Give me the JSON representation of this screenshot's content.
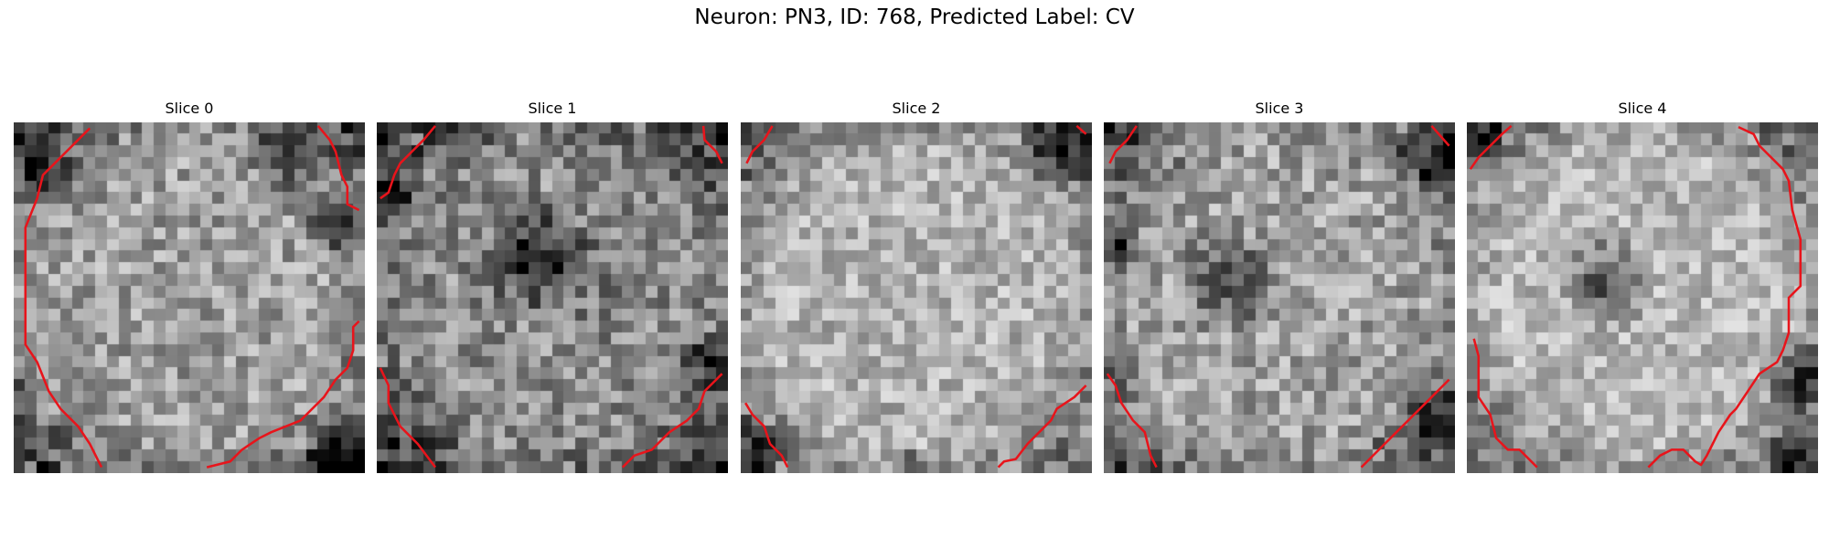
{
  "figure": {
    "title": "Neuron: PN3, ID: 768, Predicted Label: CV"
  },
  "panels": [
    {
      "title": "Slice 0",
      "image": {
        "grid": 30,
        "base": 0.62,
        "noise": 0.42,
        "ring_dark": [
          [
            0.92,
            0.95,
            0.1
          ],
          [
            0.78,
            0.1,
            0.12
          ],
          [
            0.1,
            0.15,
            0.1
          ],
          [
            0.9,
            0.3,
            0.1
          ]
        ],
        "center_dark": null,
        "seed": 11
      },
      "contour_segments": [
        [
          [
            6.5,
            0.5
          ],
          [
            5.5,
            1.5
          ],
          [
            4.5,
            2.5
          ],
          [
            3.5,
            3.5
          ],
          [
            2.5,
            4.5
          ],
          [
            2.0,
            6.5
          ],
          [
            1.0,
            9.0
          ],
          [
            1.0,
            12.0
          ],
          [
            1.0,
            16.0
          ],
          [
            1.0,
            19.0
          ],
          [
            2.0,
            20.5
          ],
          [
            3.0,
            23.0
          ],
          [
            4.0,
            24.5
          ],
          [
            5.5,
            26.0
          ],
          [
            6.5,
            27.5
          ],
          [
            7.5,
            29.5
          ]
        ],
        [
          [
            16.5,
            29.5
          ],
          [
            18.5,
            29.0
          ],
          [
            19.5,
            28.0
          ],
          [
            21.0,
            27.0
          ],
          [
            22.0,
            26.5
          ],
          [
            24.5,
            25.5
          ],
          [
            26.5,
            23.5
          ],
          [
            27.5,
            22.0
          ],
          [
            28.5,
            21.0
          ],
          [
            29.0,
            19.5
          ],
          [
            29.0,
            17.5
          ],
          [
            29.5,
            17.0
          ]
        ],
        [
          [
            26.0,
            0.3
          ],
          [
            27.0,
            1.5
          ],
          [
            27.5,
            2.5
          ],
          [
            28.0,
            4.5
          ],
          [
            28.5,
            5.5
          ],
          [
            28.5,
            7.0
          ],
          [
            29.5,
            7.5
          ]
        ]
      ]
    },
    {
      "title": "Slice 1",
      "image": {
        "grid": 30,
        "base": 0.55,
        "noise": 0.45,
        "ring_dark": [
          [
            0.05,
            0.2,
            0.08
          ],
          [
            0.95,
            0.68,
            0.1
          ],
          [
            0.45,
            0.38,
            0.18
          ]
        ],
        "center_dark": [
          0.55,
          0.42,
          0.22,
          0.1
        ],
        "seed": 23
      },
      "contour_segments": [
        [
          [
            5.0,
            0.3
          ],
          [
            4.0,
            1.5
          ],
          [
            3.0,
            2.5
          ],
          [
            2.0,
            3.5
          ],
          [
            1.5,
            4.5
          ],
          [
            1.0,
            6.0
          ],
          [
            0.3,
            6.5
          ]
        ],
        [
          [
            27.9,
            0.3
          ],
          [
            28.0,
            1.5
          ],
          [
            29.0,
            2.5
          ],
          [
            29.5,
            3.5
          ]
        ],
        [
          [
            0.3,
            21.0
          ],
          [
            1.0,
            22.5
          ],
          [
            1.0,
            24.0
          ],
          [
            2.0,
            26.0
          ],
          [
            3.5,
            27.5
          ],
          [
            5.0,
            29.5
          ]
        ],
        [
          [
            21.0,
            29.5
          ],
          [
            22.0,
            28.5
          ],
          [
            23.5,
            28.0
          ],
          [
            25.0,
            26.5
          ],
          [
            26.5,
            25.5
          ],
          [
            27.5,
            24.5
          ],
          [
            28.0,
            23.0
          ],
          [
            29.0,
            22.0
          ],
          [
            29.5,
            21.5
          ]
        ]
      ]
    },
    {
      "title": "Slice 2",
      "image": {
        "grid": 30,
        "base": 0.7,
        "noise": 0.36,
        "ring_dark": [
          [
            0.9,
            0.08,
            0.12
          ],
          [
            0.05,
            0.92,
            0.08
          ],
          [
            0.5,
            0.98,
            0.06
          ]
        ],
        "center_dark": null,
        "seed": 37
      },
      "contour_segments": [
        [
          [
            2.7,
            0.3
          ],
          [
            2.0,
            1.5
          ],
          [
            1.0,
            2.5
          ],
          [
            0.5,
            3.5
          ]
        ],
        [
          [
            28.7,
            0.3
          ],
          [
            29.5,
            1.0
          ]
        ],
        [
          [
            0.4,
            24.0
          ],
          [
            1.0,
            25.0
          ],
          [
            2.0,
            26.0
          ],
          [
            2.5,
            27.5
          ],
          [
            3.5,
            28.5
          ],
          [
            4.0,
            29.5
          ]
        ],
        [
          [
            22.0,
            29.5
          ],
          [
            22.5,
            29.0
          ],
          [
            23.5,
            28.8
          ],
          [
            24.5,
            27.5
          ],
          [
            25.5,
            26.5
          ],
          [
            26.5,
            25.5
          ],
          [
            27.0,
            24.5
          ],
          [
            28.5,
            23.5
          ],
          [
            29.5,
            22.5
          ]
        ]
      ]
    },
    {
      "title": "Slice 3",
      "image": {
        "grid": 30,
        "base": 0.63,
        "noise": 0.42,
        "ring_dark": [
          [
            0.95,
            0.1,
            0.12
          ],
          [
            0.95,
            0.85,
            0.12
          ],
          [
            0.05,
            0.35,
            0.08
          ]
        ],
        "center_dark": [
          0.35,
          0.45,
          0.17,
          0.4
        ],
        "seed": 51
      },
      "contour_segments": [
        [
          [
            2.8,
            0.3
          ],
          [
            2.0,
            1.5
          ],
          [
            1.0,
            2.5
          ],
          [
            0.5,
            3.5
          ]
        ],
        [
          [
            28.0,
            0.3
          ],
          [
            29.5,
            2.0
          ]
        ],
        [
          [
            0.3,
            21.5
          ],
          [
            1.0,
            22.5
          ],
          [
            1.5,
            24.0
          ],
          [
            2.5,
            25.5
          ],
          [
            3.5,
            26.5
          ],
          [
            4.0,
            28.5
          ],
          [
            4.5,
            29.5
          ]
        ],
        [
          [
            22.0,
            29.5
          ],
          [
            23.5,
            28.0
          ],
          [
            25.0,
            26.5
          ],
          [
            26.5,
            25.0
          ],
          [
            28.0,
            23.5
          ],
          [
            29.5,
            22.0
          ]
        ]
      ]
    },
    {
      "title": "Slice 4",
      "image": {
        "grid": 30,
        "base": 0.72,
        "noise": 0.34,
        "ring_dark": [
          [
            0.96,
            0.72,
            0.14
          ],
          [
            0.05,
            0.05,
            0.08
          ],
          [
            0.93,
            0.98,
            0.1
          ]
        ],
        "center_dark": [
          0.4,
          0.45,
          0.15,
          0.45
        ],
        "seed": 67
      },
      "contour_segments": [
        [
          [
            3.8,
            0.3
          ],
          [
            3.0,
            1.0
          ],
          [
            2.0,
            2.0
          ],
          [
            1.0,
            3.0
          ],
          [
            0.3,
            4.0
          ]
        ],
        [
          [
            23.2,
            0.4
          ],
          [
            24.5,
            1.0
          ],
          [
            25.0,
            2.0
          ],
          [
            26.0,
            3.0
          ],
          [
            27.0,
            4.0
          ],
          [
            27.5,
            5.0
          ],
          [
            27.8,
            7.5
          ],
          [
            28.5,
            10.0
          ],
          [
            28.5,
            14.0
          ],
          [
            27.5,
            15.0
          ],
          [
            27.5,
            18.0
          ],
          [
            27.0,
            19.5
          ],
          [
            26.5,
            20.5
          ],
          [
            25.0,
            21.5
          ],
          [
            24.0,
            23.0
          ],
          [
            23.0,
            24.5
          ],
          [
            22.5,
            25.0
          ],
          [
            21.5,
            26.5
          ],
          [
            21.0,
            27.5
          ],
          [
            20.5,
            28.5
          ],
          [
            20.0,
            29.3
          ],
          [
            19.5,
            29.0
          ],
          [
            18.5,
            28.0
          ],
          [
            17.5,
            28.0
          ],
          [
            16.5,
            28.5
          ],
          [
            16.0,
            29.0
          ],
          [
            15.5,
            29.5
          ]
        ],
        [
          [
            0.6,
            18.5
          ],
          [
            1.0,
            20.0
          ],
          [
            1.0,
            23.5
          ],
          [
            2.0,
            25.0
          ],
          [
            2.5,
            27.0
          ],
          [
            3.5,
            28.0
          ],
          [
            4.5,
            28.0
          ],
          [
            5.5,
            29.0
          ],
          [
            6.0,
            29.5
          ]
        ]
      ]
    }
  ]
}
